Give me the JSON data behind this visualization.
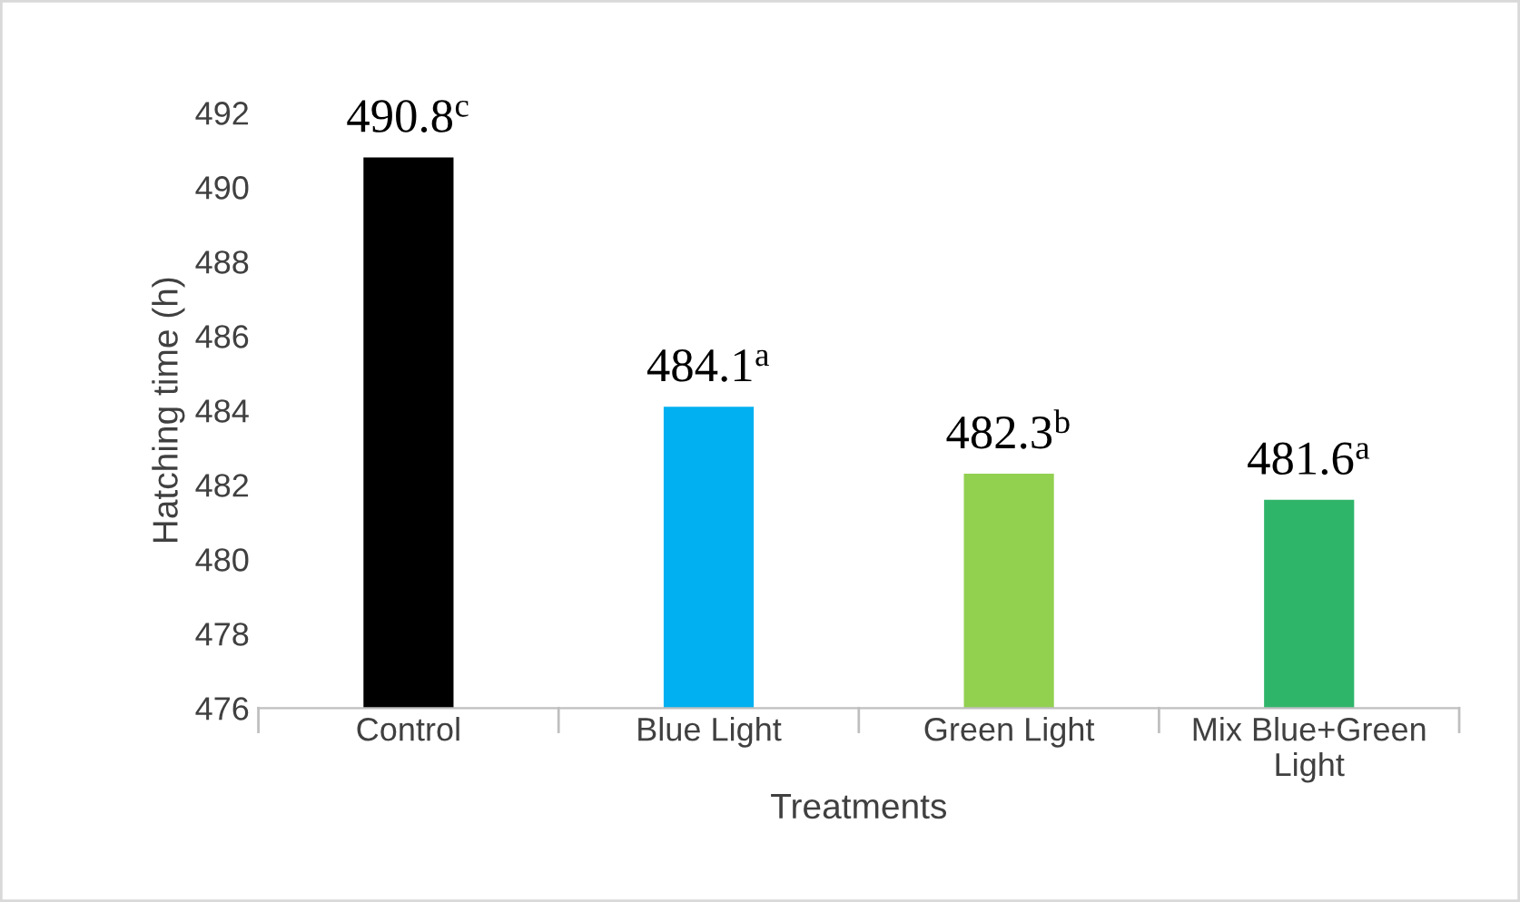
{
  "chart_data": {
    "type": "bar",
    "xlabel": "Treatments",
    "ylabel": "Hatching time (h)",
    "categories": [
      "Control",
      "Blue Light",
      "Green Light",
      "Mix Blue+Green\nLight"
    ],
    "values": [
      490.8,
      484.1,
      482.3,
      481.6
    ],
    "colors": [
      "#000000",
      "#00b0f0",
      "#92d050",
      "#2fb56a"
    ],
    "value_labels": [
      "490.8$^{c}$",
      "484.1$^{a}$",
      "482.3$^{b}$",
      "481.6$^{a}$"
    ],
    "ylim": [
      476,
      492
    ],
    "yticks": [
      476,
      478,
      480,
      482,
      484,
      486,
      488,
      490,
      492
    ],
    "grid": false,
    "legend": false
  }
}
